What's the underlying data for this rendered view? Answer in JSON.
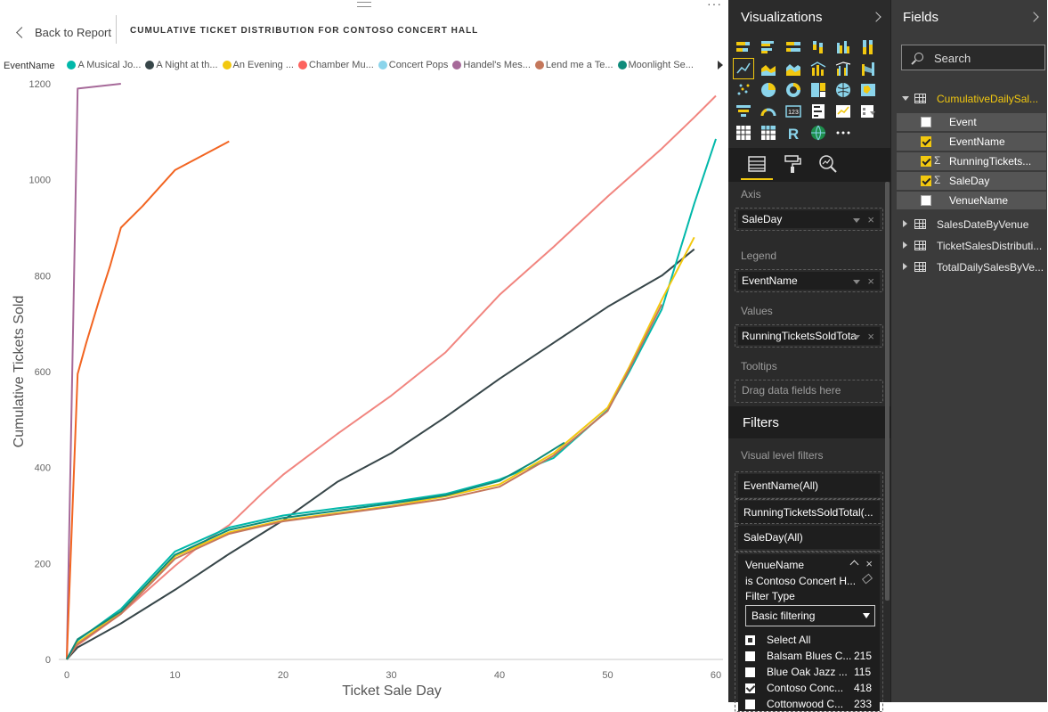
{
  "report": {
    "back_label": "Back to Report",
    "title": "CUMULATIVE TICKET DISTRIBUTION FOR CONTOSO CONCERT HALL",
    "more": "···"
  },
  "legend": {
    "title": "EventName",
    "items": [
      {
        "label": "A Musical Jo...",
        "color": "#01b8aa"
      },
      {
        "label": "A Night at th...",
        "color": "#374649"
      },
      {
        "label": "An Evening ...",
        "color": "#f2c80f"
      },
      {
        "label": "Chamber Mu...",
        "color": "#fd625e"
      },
      {
        "label": "Concert Pops",
        "color": "#8ad4eb"
      },
      {
        "label": "Handel's Mes...",
        "color": "#a66999"
      },
      {
        "label": "Lend me a Te...",
        "color": "#c4775b"
      },
      {
        "label": "Moonlight Se...",
        "color": "#0f8b7b"
      }
    ]
  },
  "chart_data": {
    "type": "line",
    "xlabel": "Ticket Sale Day",
    "ylabel": "Cumulative Tickets Sold",
    "xlim": [
      0,
      60
    ],
    "ylim": [
      0,
      1200
    ],
    "xticks": [
      0,
      10,
      20,
      30,
      40,
      50,
      60
    ],
    "yticks": [
      0,
      200,
      400,
      600,
      800,
      1000,
      1200
    ],
    "grid": false,
    "legend_position": "top",
    "series": [
      {
        "color": "#a66999",
        "points": [
          [
            0,
            0
          ],
          [
            1,
            1190
          ],
          [
            5,
            1200
          ]
        ]
      },
      {
        "color": "#f26522",
        "points": [
          [
            0,
            0
          ],
          [
            1,
            595
          ],
          [
            1.8,
            660
          ],
          [
            3,
            750
          ],
          [
            4,
            820
          ],
          [
            5,
            900
          ],
          [
            7,
            945
          ],
          [
            9,
            995
          ],
          [
            10,
            1020
          ],
          [
            15,
            1080
          ]
        ]
      },
      {
        "color": "#f1857f",
        "points": [
          [
            0,
            0
          ],
          [
            1,
            30
          ],
          [
            5,
            95
          ],
          [
            10,
            195
          ],
          [
            13,
            250
          ],
          [
            15,
            280
          ],
          [
            18,
            345
          ],
          [
            20,
            385
          ],
          [
            25,
            470
          ],
          [
            30,
            550
          ],
          [
            35,
            640
          ],
          [
            40,
            760
          ],
          [
            45,
            860
          ],
          [
            50,
            965
          ],
          [
            55,
            1065
          ],
          [
            58,
            1130
          ],
          [
            60,
            1175
          ]
        ]
      },
      {
        "color": "#374649",
        "points": [
          [
            0,
            0
          ],
          [
            1,
            25
          ],
          [
            5,
            75
          ],
          [
            10,
            145
          ],
          [
            15,
            220
          ],
          [
            20,
            290
          ],
          [
            25,
            370
          ],
          [
            30,
            430
          ],
          [
            35,
            505
          ],
          [
            40,
            585
          ],
          [
            45,
            660
          ],
          [
            50,
            735
          ],
          [
            55,
            800
          ],
          [
            58,
            855
          ]
        ]
      },
      {
        "color": "#01b8aa",
        "points": [
          [
            0,
            0
          ],
          [
            1,
            40
          ],
          [
            5,
            105
          ],
          [
            10,
            225
          ],
          [
            15,
            275
          ],
          [
            20,
            300
          ],
          [
            25,
            315
          ],
          [
            30,
            328
          ],
          [
            35,
            345
          ],
          [
            40,
            375
          ],
          [
            45,
            420
          ],
          [
            50,
            520
          ],
          [
            52,
            600
          ],
          [
            55,
            730
          ],
          [
            58,
            950
          ],
          [
            60,
            1085
          ]
        ]
      },
      {
        "color": "#f2c80f",
        "points": [
          [
            0,
            0
          ],
          [
            1,
            35
          ],
          [
            5,
            98
          ],
          [
            10,
            215
          ],
          [
            15,
            265
          ],
          [
            20,
            290
          ],
          [
            25,
            305
          ],
          [
            30,
            320
          ],
          [
            35,
            340
          ],
          [
            40,
            365
          ],
          [
            45,
            430
          ],
          [
            50,
            525
          ],
          [
            52,
            610
          ],
          [
            55,
            750
          ],
          [
            58,
            880
          ]
        ]
      },
      {
        "color": "#c4775b",
        "points": [
          [
            0,
            0
          ],
          [
            1,
            32
          ],
          [
            5,
            95
          ],
          [
            10,
            210
          ],
          [
            15,
            262
          ],
          [
            20,
            288
          ],
          [
            25,
            303
          ],
          [
            30,
            318
          ],
          [
            35,
            335
          ],
          [
            40,
            360
          ],
          [
            45,
            425
          ],
          [
            50,
            518
          ],
          [
            52,
            605
          ],
          [
            55,
            740
          ]
        ]
      },
      {
        "color": "#0f8b7b",
        "points": [
          [
            0,
            0
          ],
          [
            1,
            42
          ],
          [
            5,
            100
          ],
          [
            10,
            218
          ],
          [
            15,
            270
          ],
          [
            20,
            295
          ],
          [
            25,
            310
          ],
          [
            30,
            325
          ],
          [
            35,
            342
          ],
          [
            40,
            372
          ],
          [
            43,
            410
          ],
          [
            46,
            452
          ]
        ]
      }
    ]
  },
  "visualizations": {
    "title": "Visualizations",
    "wells": {
      "axis_label": "Axis",
      "axis_value": "SaleDay",
      "legend_label": "Legend",
      "legend_value": "EventName",
      "values_label": "Values",
      "values_value": "RunningTicketsSoldTota",
      "tooltips_label": "Tooltips",
      "tooltips_placeholder": "Drag data fields here"
    },
    "more_icon": "···"
  },
  "filters": {
    "title": "Filters",
    "visual_level_label": "Visual level filters",
    "chips": [
      "EventName(All)",
      "RunningTicketsSoldTotal(...",
      "SaleDay(All)"
    ],
    "venue": {
      "title": "VenueName",
      "summary": "is Contoso Concert H...",
      "filter_type_label": "Filter Type",
      "filter_type_value": "Basic filtering",
      "options": [
        {
          "label": "Select All",
          "count": "",
          "state": "partial"
        },
        {
          "label": "Balsam Blues C...",
          "count": "215",
          "state": "off"
        },
        {
          "label": "Blue Oak Jazz ...",
          "count": "115",
          "state": "off"
        },
        {
          "label": "Contoso Conc...",
          "count": "418",
          "state": "checked"
        },
        {
          "label": "Cottonwood C...",
          "count": "233",
          "state": "off"
        }
      ]
    }
  },
  "fields": {
    "title": "Fields",
    "search_placeholder": "Search",
    "active_table": "CumulativeDailySal...",
    "active_table_color": "#f2c80f",
    "columns": [
      {
        "label": "Event",
        "checked": false,
        "sigma": false
      },
      {
        "label": "EventName",
        "checked": true,
        "sigma": false
      },
      {
        "label": "RunningTickets...",
        "checked": true,
        "sigma": true
      },
      {
        "label": "SaleDay",
        "checked": true,
        "sigma": true
      },
      {
        "label": "VenueName",
        "checked": false,
        "sigma": false
      }
    ],
    "other_tables": [
      "SalesDateByVenue",
      "TicketSalesDistributi...",
      "TotalDailySalesByVe..."
    ]
  }
}
